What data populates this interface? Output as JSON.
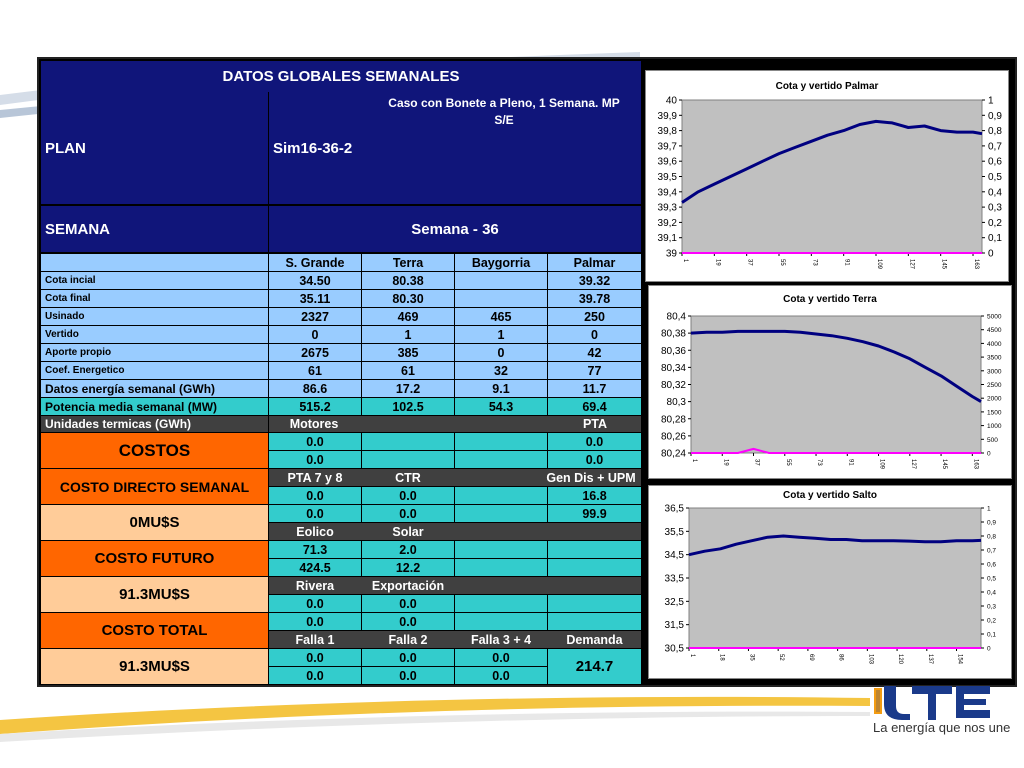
{
  "header": {
    "title": "DATOS GLOBALES SEMANALES",
    "plan_label": "PLAN",
    "plan_value": "Sim16-36-2",
    "case_line1": "Caso con Bonete a Pleno, 1 Semana. MP",
    "case_line2": "S/E",
    "semana_label": "SEMANA",
    "semana_value": "Semana - 36"
  },
  "table": {
    "columns": [
      "S. Grande",
      "Terra",
      "Baygorria",
      "Palmar"
    ],
    "rows": [
      {
        "label": "Cota incial",
        "values": [
          "34.50",
          "80.38",
          "",
          "39.32"
        ]
      },
      {
        "label": "Cota final",
        "values": [
          "35.11",
          "80.30",
          "",
          "39.78"
        ]
      },
      {
        "label": "Usinado",
        "values": [
          "2327",
          "469",
          "465",
          "250"
        ]
      },
      {
        "label": "Vertido",
        "values": [
          "0",
          "1",
          "1",
          "0"
        ]
      },
      {
        "label": "Aporte propio",
        "values": [
          "2675",
          "385",
          "0",
          "42"
        ]
      },
      {
        "label": "Coef. Energetico",
        "values": [
          "61",
          "61",
          "32",
          "77"
        ]
      },
      {
        "label": "Datos energía semanal  (GWh)",
        "values": [
          "86.6",
          "17.2",
          "9.1",
          "11.7"
        ]
      },
      {
        "label": "Potencia media semanal (MW)",
        "values": [
          "515.2",
          "102.5",
          "54.3",
          "69.4"
        ]
      }
    ]
  },
  "termicas": {
    "label": "Unidades termicas (GWh)",
    "motores": "Motores",
    "pta": "PTA",
    "r1": [
      "0.0",
      "0.0"
    ],
    "r2": [
      "0.0",
      "0.0"
    ],
    "pta7y8": "PTA 7 y 8",
    "ctr": "CTR",
    "gendis": "Gen Dis + UPM",
    "r3": [
      "0.0",
      "0.0",
      "16.8"
    ],
    "r4": [
      "0.0",
      "0.0",
      "99.9"
    ],
    "eolico": "Eolico",
    "solar": "Solar",
    "r5": [
      "71.3",
      "2.0"
    ],
    "r6": [
      "424.5",
      "12.2"
    ],
    "rivera": "Rivera",
    "exportacion": "Exportación",
    "r7": [
      "0.0",
      "0.0"
    ],
    "r8": [
      "0.0",
      "0.0"
    ],
    "falla1": "Falla 1",
    "falla2": "Falla 2",
    "falla34": "Falla 3 + 4",
    "demanda": "Demanda",
    "r9": [
      "0.0",
      "0.0",
      "0.0"
    ],
    "r10": [
      "0.0",
      "0.0",
      "0.0"
    ],
    "demanda_value": "214.7"
  },
  "costs": {
    "costos": "COSTOS",
    "directo_label": "COSTO DIRECTO SEMANAL",
    "directo_value": "0MU$S",
    "futuro_label": "COSTO FUTURO",
    "futuro_value": "91.3MU$S",
    "total_label": "COSTO TOTAL",
    "total_value": "91.3MU$S"
  },
  "colors": {
    "navy": "#10157a",
    "light_blue": "#99ccff",
    "turquoise": "#33cccc",
    "dark_gray": "#404040",
    "orange": "#ff6600",
    "peach": "#ffcc99",
    "series_line": "#000080",
    "vertido_line": "#ff00ff"
  },
  "brand": {
    "logo": "UTE",
    "slogan": "La energía que nos une"
  },
  "chart_data": [
    {
      "type": "line",
      "title": "Cota  y vertido  Palmar",
      "ylim": [
        39,
        40
      ],
      "y2lim": [
        0,
        1
      ],
      "yticks": [
        "40",
        "39,9",
        "39,8",
        "39,7",
        "39,6",
        "39,5",
        "39,4",
        "39,3",
        "39,2",
        "39,1",
        "39"
      ],
      "y2ticks": [
        "1",
        "0,9",
        "0,8",
        "0,7",
        "0,6",
        "0,5",
        "0,4",
        "0,3",
        "0,2",
        "0,1",
        "0"
      ],
      "xticks": [
        "1",
        "19",
        "37",
        "55",
        "73",
        "91",
        "109",
        "127",
        "145",
        "163"
      ],
      "x": [
        1,
        10,
        19,
        28,
        37,
        46,
        55,
        64,
        73,
        82,
        91,
        100,
        109,
        118,
        127,
        136,
        145,
        154,
        163,
        168
      ],
      "series": [
        {
          "values": [
            39.33,
            39.4,
            39.45,
            39.5,
            39.55,
            39.6,
            39.65,
            39.69,
            39.73,
            39.77,
            39.8,
            39.84,
            39.86,
            39.85,
            39.82,
            39.83,
            39.8,
            39.79,
            39.79,
            39.78
          ]
        },
        {
          "axis": "y2",
          "values": [
            0,
            0,
            0,
            0,
            0,
            0,
            0,
            0,
            0,
            0,
            0,
            0,
            0,
            0,
            0,
            0,
            0,
            0,
            0,
            0
          ]
        }
      ]
    },
    {
      "type": "line",
      "title": "Cota y vertido Terra",
      "ylim": [
        80.24,
        80.4
      ],
      "y2lim": [
        0,
        5000
      ],
      "yticks": [
        "80,4",
        "80,38",
        "80,36",
        "80,34",
        "80,32",
        "80,3",
        "80,28",
        "80,26",
        "80,24"
      ],
      "y2ticks": [
        "5000",
        "4500",
        "4000",
        "3500",
        "3000",
        "2500",
        "2000",
        "1500",
        "1000",
        "500",
        "0"
      ],
      "xticks": [
        "1",
        "19",
        "37",
        "55",
        "73",
        "91",
        "109",
        "127",
        "145",
        "163"
      ],
      "x": [
        1,
        10,
        19,
        28,
        37,
        46,
        55,
        64,
        73,
        82,
        91,
        100,
        109,
        118,
        127,
        136,
        145,
        154,
        163,
        168
      ],
      "series": [
        {
          "values": [
            80.38,
            80.381,
            80.381,
            80.382,
            80.382,
            80.382,
            80.382,
            80.381,
            80.379,
            80.377,
            80.374,
            80.37,
            80.365,
            80.358,
            80.35,
            80.34,
            80.33,
            80.318,
            80.306,
            80.3
          ]
        },
        {
          "axis": "y2",
          "values": [
            0,
            0,
            0,
            0,
            150,
            0,
            0,
            0,
            0,
            0,
            0,
            0,
            0,
            0,
            0,
            0,
            0,
            0,
            0,
            0
          ]
        }
      ]
    },
    {
      "type": "line",
      "title": "Cota y vertido Salto",
      "ylim": [
        30.5,
        36.5
      ],
      "y2lim": [
        0,
        1
      ],
      "yticks": [
        "36,5",
        "35,5",
        "34,5",
        "33,5",
        "32,5",
        "31,5",
        "30,5"
      ],
      "y2ticks": [
        "1",
        "0,9",
        "0,8",
        "0,7",
        "0,6",
        "0,5",
        "0,4",
        "0,3",
        "0,2",
        "0,1",
        "0"
      ],
      "xticks": [
        "1",
        "18",
        "35",
        "52",
        "69",
        "86",
        "103",
        "120",
        "137",
        "154"
      ],
      "x": [
        1,
        10,
        19,
        28,
        37,
        46,
        55,
        64,
        73,
        82,
        91,
        100,
        109,
        118,
        127,
        136,
        145,
        154,
        163,
        168
      ],
      "series": [
        {
          "values": [
            34.5,
            34.65,
            34.75,
            34.95,
            35.1,
            35.25,
            35.3,
            35.25,
            35.2,
            35.15,
            35.15,
            35.1,
            35.1,
            35.1,
            35.08,
            35.05,
            35.05,
            35.1,
            35.1,
            35.11
          ]
        },
        {
          "axis": "y2",
          "values": [
            0,
            0,
            0,
            0,
            0,
            0,
            0,
            0,
            0,
            0,
            0,
            0,
            0,
            0,
            0,
            0,
            0,
            0,
            0,
            0
          ]
        }
      ]
    }
  ]
}
